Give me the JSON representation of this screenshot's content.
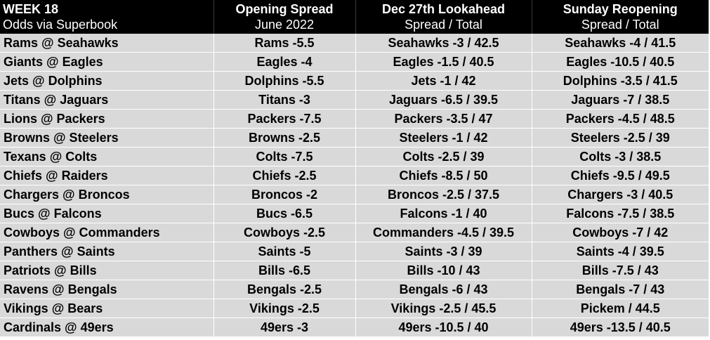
{
  "header": {
    "col0": {
      "line1": "WEEK 18",
      "line2": "Odds via Superbook"
    },
    "col1": {
      "line1": "Opening Spread",
      "line2": "June 2022"
    },
    "col2": {
      "line1": "Dec 27th Lookahead",
      "line2": "Spread / Total"
    },
    "col3": {
      "line1": "Sunday Reopening",
      "line2": "Spread / Total"
    }
  },
  "rows": [
    {
      "matchup": "Rams @ Seahawks",
      "opening": "Rams -5.5",
      "lookahead": "Seahawks -3 / 42.5",
      "reopening": "Seahawks -4 / 41.5"
    },
    {
      "matchup": "Giants @ Eagles",
      "opening": "Eagles -4",
      "lookahead": "Eagles -1.5 / 40.5",
      "reopening": "Eagles -10.5 / 40.5"
    },
    {
      "matchup": "Jets @ Dolphins",
      "opening": "Dolphins -5.5",
      "lookahead": "Jets -1 / 42",
      "reopening": "Dolphins -3.5 / 41.5"
    },
    {
      "matchup": "Titans @ Jaguars",
      "opening": "Titans -3",
      "lookahead": "Jaguars -6.5 / 39.5",
      "reopening": "Jaguars -7 / 38.5"
    },
    {
      "matchup": "Lions @ Packers",
      "opening": "Packers -7.5",
      "lookahead": "Packers -3.5 / 47",
      "reopening": "Packers -4.5 / 48.5"
    },
    {
      "matchup": "Browns @ Steelers",
      "opening": "Browns -2.5",
      "lookahead": "Steelers -1 / 42",
      "reopening": "Steelers -2.5 / 39"
    },
    {
      "matchup": "Texans @ Colts",
      "opening": "Colts -7.5",
      "lookahead": "Colts -2.5 / 39",
      "reopening": "Colts -3 / 38.5"
    },
    {
      "matchup": "Chiefs @ Raiders",
      "opening": "Chiefs -2.5",
      "lookahead": "Chiefs -8.5 / 50",
      "reopening": "Chiefs -9.5 / 49.5"
    },
    {
      "matchup": "Chargers @ Broncos",
      "opening": "Broncos -2",
      "lookahead": "Broncos -2.5 / 37.5",
      "reopening": "Chargers -3 / 40.5"
    },
    {
      "matchup": "Bucs @ Falcons",
      "opening": "Bucs -6.5",
      "lookahead": "Falcons -1 / 40",
      "reopening": "Falcons -7.5 / 38.5"
    },
    {
      "matchup": "Cowboys @ Commanders",
      "opening": "Cowboys -2.5",
      "lookahead": "Commanders -4.5 / 39.5",
      "reopening": "Cowboys -7 / 42"
    },
    {
      "matchup": "Panthers @ Saints",
      "opening": "Saints -5",
      "lookahead": "Saints -3 / 39",
      "reopening": "Saints -4 / 39.5"
    },
    {
      "matchup": "Patriots @ Bills",
      "opening": "Bills -6.5",
      "lookahead": "Bills -10 / 43",
      "reopening": "Bills -7.5 / 43"
    },
    {
      "matchup": "Ravens @ Bengals",
      "opening": "Bengals -2.5",
      "lookahead": "Bengals -6 / 43",
      "reopening": "Bengals -7 / 43"
    },
    {
      "matchup": "Vikings @ Bears",
      "opening": "Vikings -2.5",
      "lookahead": "Vikings -2.5 / 45.5",
      "reopening": "Pickem / 44.5"
    },
    {
      "matchup": "Cardinals @ 49ers",
      "opening": "49ers -3",
      "lookahead": "49ers -10.5 / 40",
      "reopening": "49ers -13.5 / 40.5"
    }
  ]
}
